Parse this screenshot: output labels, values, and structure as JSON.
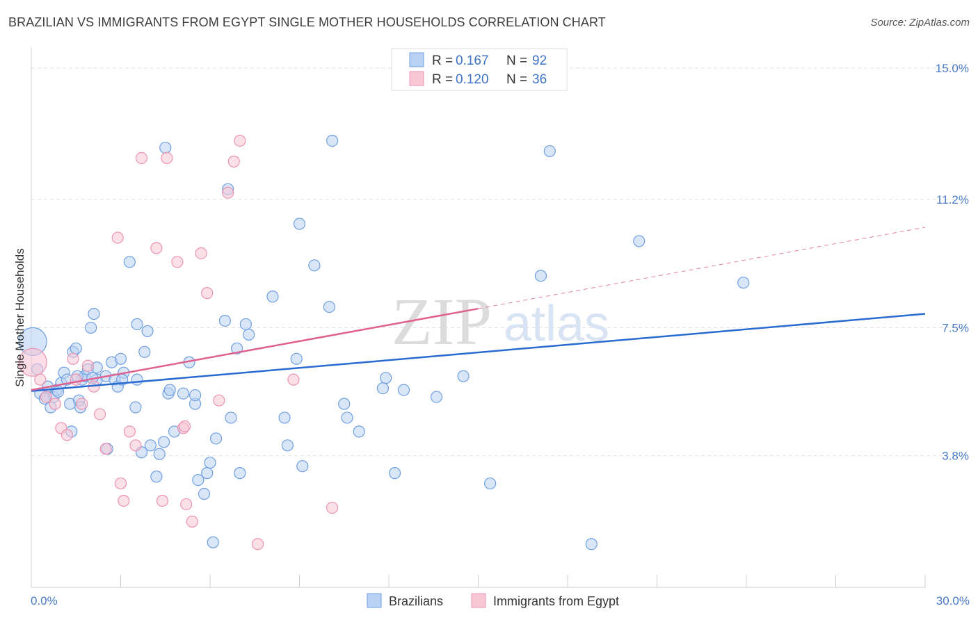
{
  "chart_data": {
    "type": "scatter",
    "title": "BRAZILIAN VS IMMIGRANTS FROM EGYPT SINGLE MOTHER HOUSEHOLDS CORRELATION CHART",
    "source": "Source: ZipAtlas.com",
    "ylabel": "Single Mother Households",
    "xlim": [
      0,
      30
    ],
    "ylim": [
      0,
      15.6
    ],
    "x_tick_labels": [
      "0.0%",
      "30.0%"
    ],
    "y_ticks": [
      {
        "value": 3.8,
        "label": "3.8%"
      },
      {
        "value": 7.5,
        "label": "7.5%"
      },
      {
        "value": 11.2,
        "label": "11.2%"
      },
      {
        "value": 15.0,
        "label": "15.0%"
      }
    ],
    "watermark": {
      "zip": "ZIP",
      "atlas": "atlas"
    },
    "stats_legend": [
      {
        "series": "Brazilians",
        "r_label": "R =",
        "r_value": "0.167",
        "n_label": "N =",
        "n_value": "92"
      },
      {
        "series": "Immigrants from Egypt",
        "r_label": "R =",
        "r_value": "0.120",
        "n_label": "N =",
        "n_value": "36"
      }
    ],
    "series": [
      {
        "name": "Brazilians",
        "color": "#6f9fe0",
        "fill": "#b9d2f3",
        "line_color": "#2a6bd1",
        "trend": {
          "x0": 0,
          "y0": 5.67,
          "x1": 30,
          "y1": 7.9,
          "dashed_from": null
        },
        "points": [
          [
            0.05,
            7.1
          ],
          [
            0.2,
            6.3
          ],
          [
            0.3,
            5.6
          ],
          [
            0.5,
            5.5
          ],
          [
            0.55,
            5.8
          ],
          [
            0.65,
            5.2
          ],
          [
            0.75,
            5.5
          ],
          [
            0.85,
            5.7
          ],
          [
            0.9,
            5.65
          ],
          [
            1.0,
            5.9
          ],
          [
            1.1,
            6.2
          ],
          [
            1.2,
            6.0
          ],
          [
            1.3,
            5.3
          ],
          [
            1.35,
            4.5
          ],
          [
            1.4,
            6.8
          ],
          [
            1.5,
            6.9
          ],
          [
            1.6,
            5.4
          ],
          [
            1.7,
            6.0
          ],
          [
            1.8,
            6.1
          ],
          [
            1.9,
            6.3
          ],
          [
            2.0,
            7.5
          ],
          [
            2.1,
            7.9
          ],
          [
            2.2,
            6.0
          ],
          [
            2.5,
            6.1
          ],
          [
            2.7,
            6.5
          ],
          [
            2.8,
            6.0
          ],
          [
            2.9,
            5.8
          ],
          [
            3.0,
            6.6
          ],
          [
            3.1,
            6.2
          ],
          [
            3.3,
            9.4
          ],
          [
            3.5,
            5.2
          ],
          [
            3.55,
            7.6
          ],
          [
            3.7,
            3.9
          ],
          [
            3.8,
            6.8
          ],
          [
            3.9,
            7.4
          ],
          [
            4.0,
            4.1
          ],
          [
            4.2,
            3.2
          ],
          [
            4.3,
            3.85
          ],
          [
            4.5,
            12.7
          ],
          [
            4.6,
            5.6
          ],
          [
            4.8,
            4.5
          ],
          [
            5.1,
            5.6
          ],
          [
            5.3,
            6.5
          ],
          [
            5.5,
            5.3
          ],
          [
            5.6,
            3.1
          ],
          [
            5.8,
            2.7
          ],
          [
            5.9,
            3.3
          ],
          [
            6.0,
            3.6
          ],
          [
            6.1,
            1.3
          ],
          [
            6.2,
            4.3
          ],
          [
            6.5,
            7.7
          ],
          [
            6.6,
            11.5
          ],
          [
            6.7,
            4.9
          ],
          [
            6.9,
            6.9
          ],
          [
            7.0,
            3.3
          ],
          [
            7.2,
            7.6
          ],
          [
            7.3,
            7.3
          ],
          [
            8.1,
            8.4
          ],
          [
            8.5,
            4.9
          ],
          [
            8.6,
            4.1
          ],
          [
            8.9,
            6.6
          ],
          [
            9.0,
            10.5
          ],
          [
            9.1,
            3.5
          ],
          [
            9.5,
            9.3
          ],
          [
            10.0,
            8.1
          ],
          [
            10.1,
            12.9
          ],
          [
            10.5,
            5.3
          ],
          [
            10.6,
            4.9
          ],
          [
            11.0,
            4.5
          ],
          [
            11.8,
            5.75
          ],
          [
            11.9,
            6.05
          ],
          [
            12.2,
            3.3
          ],
          [
            12.5,
            5.7
          ],
          [
            13.6,
            5.5
          ],
          [
            14.5,
            6.1
          ],
          [
            15.4,
            3.0
          ],
          [
            17.1,
            9.0
          ],
          [
            17.4,
            12.6
          ],
          [
            18.8,
            1.25
          ],
          [
            20.4,
            10.0
          ],
          [
            23.9,
            8.8
          ],
          [
            2.2,
            6.35
          ],
          [
            1.65,
            5.2
          ],
          [
            4.65,
            5.7
          ],
          [
            5.5,
            5.55
          ],
          [
            3.55,
            6.0
          ],
          [
            4.45,
            4.2
          ],
          [
            0.45,
            5.45
          ],
          [
            1.55,
            6.1
          ],
          [
            3.05,
            6.0
          ],
          [
            2.55,
            4.0
          ],
          [
            2.05,
            6.05
          ]
        ]
      },
      {
        "name": "Immigrants from Egypt",
        "color": "#ec93b0",
        "fill": "#f7c7d6",
        "line_color": "#e0608e",
        "trend": {
          "x0": 0,
          "y0": 5.7,
          "x1": 30,
          "y1": 10.4,
          "dashed_from": 15
        },
        "points": [
          [
            0.05,
            6.5
          ],
          [
            0.3,
            6.0
          ],
          [
            0.5,
            5.5
          ],
          [
            0.8,
            5.3
          ],
          [
            1.0,
            4.6
          ],
          [
            1.2,
            4.4
          ],
          [
            1.4,
            6.6
          ],
          [
            1.5,
            6.0
          ],
          [
            1.7,
            5.3
          ],
          [
            1.9,
            6.4
          ],
          [
            2.1,
            5.8
          ],
          [
            2.3,
            5.0
          ],
          [
            2.5,
            4.0
          ],
          [
            2.9,
            10.1
          ],
          [
            3.0,
            3.0
          ],
          [
            3.1,
            2.5
          ],
          [
            3.3,
            4.5
          ],
          [
            3.5,
            4.1
          ],
          [
            3.7,
            12.4
          ],
          [
            4.2,
            9.8
          ],
          [
            4.4,
            2.5
          ],
          [
            4.55,
            12.4
          ],
          [
            4.9,
            9.4
          ],
          [
            5.1,
            4.6
          ],
          [
            5.2,
            2.4
          ],
          [
            5.4,
            1.9
          ],
          [
            5.7,
            9.65
          ],
          [
            5.9,
            8.5
          ],
          [
            6.3,
            5.4
          ],
          [
            6.6,
            11.4
          ],
          [
            6.8,
            12.3
          ],
          [
            7.0,
            12.9
          ],
          [
            7.6,
            1.25
          ],
          [
            8.8,
            6.0
          ],
          [
            10.1,
            2.3
          ],
          [
            5.15,
            4.65
          ]
        ]
      }
    ]
  }
}
